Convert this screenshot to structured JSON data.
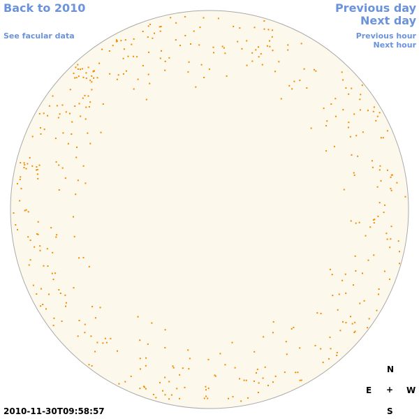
{
  "links": {
    "back": "Back to 2010",
    "facular": "See facular data",
    "previous_day": "Previous day",
    "next_day": "Next day",
    "previous_hour": "Previous hour",
    "next_hour": "Next hour"
  },
  "timestamp": "2010-11-30T09:58:57",
  "compass": {
    "north": "N",
    "east": "E",
    "center": "+",
    "west": "W",
    "south": "S"
  }
}
